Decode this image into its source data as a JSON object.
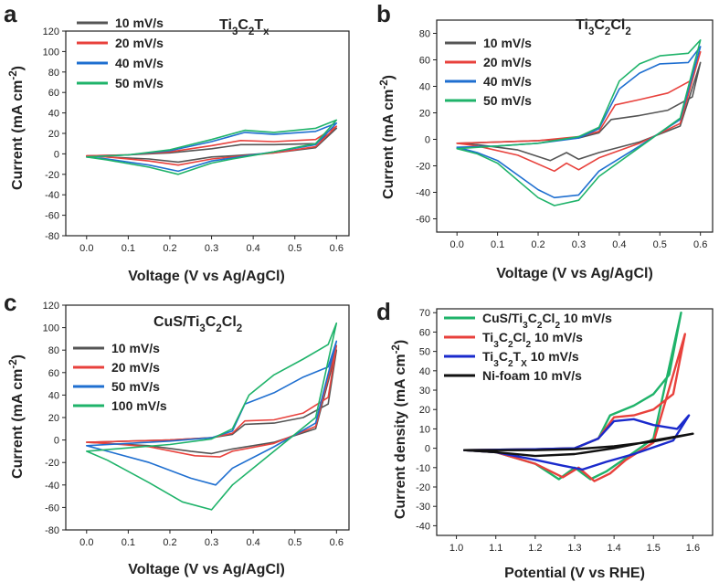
{
  "figure": {
    "panels": [
      {
        "label": "a",
        "title": "Ti3C2Tx",
        "xlabel": "Voltage (V vs Ag/AgCl)",
        "ylabel": "Current (mA cm-2)"
      },
      {
        "label": "b",
        "title": "Ti3C2Cl2",
        "xlabel": "Voltage (V vs Ag/AgCl)",
        "ylabel": "Current (mA cm-2)"
      },
      {
        "label": "c",
        "title": "CuS/Ti3C2Cl2",
        "xlabel": "Voltage (V vs Ag/AgCl)",
        "ylabel": "Current (mA cm-2)"
      },
      {
        "label": "d",
        "title": "",
        "xlabel": "Potential (V vs RHE)",
        "ylabel": "Current density (mA cm-2)"
      }
    ]
  },
  "chart_data": [
    {
      "type": "line",
      "panel": "a",
      "title": "Ti3C2Tx",
      "xlabel": "Voltage (V vs Ag/AgCl)",
      "ylabel": "Current (mA cm-2)",
      "xlim": [
        -0.05,
        0.63
      ],
      "ylim": [
        -80,
        120
      ],
      "xticks": [
        0.0,
        0.1,
        0.2,
        0.3,
        0.4,
        0.5,
        0.6
      ],
      "yticks": [
        -80,
        -60,
        -40,
        -20,
        0,
        20,
        40,
        60,
        80,
        100,
        120
      ],
      "xtick_labels": [
        "0.0",
        "0.1",
        "0.2",
        "0.3",
        "0.4",
        "0.5",
        "0.6"
      ],
      "ytick_labels": [
        "-80",
        "-60",
        "-40",
        "-20",
        "0",
        "20",
        "40",
        "60",
        "80",
        "100",
        "120"
      ],
      "legend_position": "top-left",
      "series": [
        {
          "name": "10 mV/s",
          "color": "#555555",
          "x": [
            0.0,
            0.1,
            0.2,
            0.3,
            0.37,
            0.45,
            0.55,
            0.6,
            0.55,
            0.45,
            0.35,
            0.3,
            0.22,
            0.15,
            0.05,
            0.0
          ],
          "y": [
            -2,
            -1,
            1,
            5,
            9,
            9,
            10,
            25,
            6,
            1,
            -2,
            -3,
            -8,
            -5,
            -3,
            -2
          ]
        },
        {
          "name": "20 mV/s",
          "color": "#e8413c",
          "x": [
            0.0,
            0.1,
            0.2,
            0.3,
            0.37,
            0.45,
            0.55,
            0.6,
            0.55,
            0.45,
            0.35,
            0.3,
            0.22,
            0.15,
            0.05,
            0.0
          ],
          "y": [
            -2,
            -1,
            2,
            8,
            13,
            12,
            14,
            27,
            7,
            1,
            -3,
            -5,
            -11,
            -7,
            -3,
            -2
          ]
        },
        {
          "name": "40 mV/s",
          "color": "#1f6fd0",
          "x": [
            0.0,
            0.1,
            0.2,
            0.3,
            0.38,
            0.45,
            0.55,
            0.6,
            0.55,
            0.45,
            0.35,
            0.3,
            0.22,
            0.15,
            0.05,
            0.0
          ],
          "y": [
            -3,
            -1,
            3,
            12,
            21,
            19,
            22,
            30,
            9,
            2,
            -4,
            -7,
            -17,
            -11,
            -5,
            -3
          ]
        },
        {
          "name": "50 mV/s",
          "color": "#1fb36a",
          "x": [
            0.0,
            0.1,
            0.2,
            0.3,
            0.38,
            0.45,
            0.55,
            0.6,
            0.55,
            0.45,
            0.35,
            0.3,
            0.22,
            0.15,
            0.05,
            0.0
          ],
          "y": [
            -3,
            -1,
            4,
            14,
            23,
            21,
            25,
            33,
            10,
            2,
            -5,
            -9,
            -20,
            -13,
            -6,
            -3
          ]
        }
      ]
    },
    {
      "type": "line",
      "panel": "b",
      "title": "Ti3C2Cl2",
      "xlabel": "Voltage (V vs Ag/AgCl)",
      "ylabel": "Current (mA cm-2)",
      "xlim": [
        -0.05,
        0.63
      ],
      "ylim": [
        -70,
        90
      ],
      "xticks": [
        0.0,
        0.1,
        0.2,
        0.3,
        0.4,
        0.5,
        0.6
      ],
      "yticks": [
        -60,
        -40,
        -20,
        0,
        20,
        40,
        60,
        80
      ],
      "xtick_labels": [
        "0.0",
        "0.1",
        "0.2",
        "0.3",
        "0.4",
        "0.5",
        "0.6"
      ],
      "ytick_labels": [
        "-60",
        "-40",
        "-20",
        "0",
        "20",
        "40",
        "60",
        "80"
      ],
      "legend_position": "top-left",
      "series": [
        {
          "name": "10 mV/s",
          "color": "#555555",
          "x": [
            0.0,
            0.1,
            0.2,
            0.3,
            0.35,
            0.38,
            0.45,
            0.52,
            0.58,
            0.6,
            0.55,
            0.45,
            0.35,
            0.3,
            0.27,
            0.23,
            0.15,
            0.05,
            0.0
          ],
          "y": [
            -3,
            -2,
            -1,
            1,
            5,
            15,
            18,
            22,
            32,
            58,
            10,
            -2,
            -10,
            -15,
            -10,
            -16,
            -8,
            -4,
            -3
          ]
        },
        {
          "name": "20 mV/s",
          "color": "#e8413c",
          "x": [
            0.0,
            0.1,
            0.2,
            0.3,
            0.35,
            0.39,
            0.45,
            0.52,
            0.58,
            0.6,
            0.55,
            0.45,
            0.35,
            0.3,
            0.27,
            0.24,
            0.15,
            0.05,
            0.0
          ],
          "y": [
            -3,
            -2,
            -1,
            2,
            6,
            26,
            30,
            35,
            45,
            66,
            12,
            -3,
            -14,
            -23,
            -18,
            -24,
            -12,
            -5,
            -3
          ]
        },
        {
          "name": "40 mV/s",
          "color": "#1f6fd0",
          "x": [
            0.0,
            0.1,
            0.2,
            0.3,
            0.35,
            0.4,
            0.45,
            0.5,
            0.57,
            0.6,
            0.55,
            0.45,
            0.35,
            0.3,
            0.24,
            0.2,
            0.1,
            0.05,
            0.0
          ],
          "y": [
            -6,
            -5,
            -3,
            1,
            8,
            38,
            50,
            57,
            58,
            70,
            15,
            -5,
            -24,
            -42,
            -44,
            -38,
            -16,
            -10,
            -6
          ]
        },
        {
          "name": "50 mV/s",
          "color": "#1fb36a",
          "x": [
            0.0,
            0.1,
            0.2,
            0.3,
            0.35,
            0.4,
            0.45,
            0.5,
            0.57,
            0.6,
            0.55,
            0.45,
            0.35,
            0.3,
            0.24,
            0.2,
            0.1,
            0.05,
            0.0
          ],
          "y": [
            -7,
            -5,
            -3,
            2,
            9,
            44,
            57,
            63,
            65,
            75,
            16,
            -6,
            -28,
            -46,
            -50,
            -44,
            -18,
            -11,
            -7
          ]
        }
      ]
    },
    {
      "type": "line",
      "panel": "c",
      "title": "CuS/Ti3C2Cl2",
      "xlabel": "Voltage (V vs Ag/AgCl)",
      "ylabel": "Current (mA cm-2)",
      "xlim": [
        -0.05,
        0.63
      ],
      "ylim": [
        -80,
        120
      ],
      "xticks": [
        0.0,
        0.1,
        0.2,
        0.3,
        0.4,
        0.5,
        0.6
      ],
      "yticks": [
        -80,
        -60,
        -40,
        -20,
        0,
        20,
        40,
        60,
        80,
        100,
        120
      ],
      "xtick_labels": [
        "0.0",
        "0.1",
        "0.2",
        "0.3",
        "0.4",
        "0.5",
        "0.6"
      ],
      "ytick_labels": [
        "-80",
        "-60",
        "-40",
        "-20",
        "0",
        "20",
        "40",
        "60",
        "80",
        "100",
        "120"
      ],
      "legend_position": "top-left",
      "series": [
        {
          "name": "10 mV/s",
          "color": "#555555",
          "x": [
            0.0,
            0.1,
            0.2,
            0.3,
            0.35,
            0.38,
            0.45,
            0.52,
            0.58,
            0.6,
            0.55,
            0.45,
            0.35,
            0.3,
            0.25,
            0.15,
            0.05,
            0.0
          ],
          "y": [
            -2,
            -1,
            0,
            2,
            5,
            14,
            15,
            20,
            32,
            80,
            10,
            -2,
            -8,
            -12,
            -10,
            -5,
            -3,
            -2
          ]
        },
        {
          "name": "20 mV/s",
          "color": "#e8413c",
          "x": [
            0.0,
            0.1,
            0.2,
            0.3,
            0.35,
            0.38,
            0.45,
            0.52,
            0.58,
            0.6,
            0.55,
            0.45,
            0.35,
            0.32,
            0.26,
            0.15,
            0.05,
            0.0
          ],
          "y": [
            -2,
            -1,
            0,
            2,
            6,
            17,
            18,
            24,
            38,
            84,
            12,
            -3,
            -10,
            -15,
            -14,
            -6,
            -3,
            -2
          ]
        },
        {
          "name": "50 mV/s",
          "color": "#1f6fd0",
          "x": [
            0.0,
            0.1,
            0.2,
            0.3,
            0.35,
            0.38,
            0.45,
            0.52,
            0.58,
            0.6,
            0.55,
            0.45,
            0.35,
            0.31,
            0.25,
            0.15,
            0.05,
            0.0
          ],
          "y": [
            -5,
            -3,
            -1,
            2,
            8,
            32,
            42,
            56,
            65,
            88,
            15,
            -6,
            -25,
            -40,
            -34,
            -20,
            -10,
            -5
          ]
        },
        {
          "name": "100 mV/s",
          "color": "#1fb36a",
          "x": [
            0.0,
            0.1,
            0.2,
            0.3,
            0.35,
            0.39,
            0.45,
            0.52,
            0.58,
            0.6,
            0.55,
            0.45,
            0.35,
            0.3,
            0.23,
            0.15,
            0.05,
            0.0
          ],
          "y": [
            -10,
            -7,
            -4,
            1,
            10,
            40,
            58,
            72,
            85,
            104,
            20,
            -10,
            -40,
            -62,
            -55,
            -38,
            -18,
            -10
          ]
        }
      ]
    },
    {
      "type": "line",
      "panel": "d",
      "title": "",
      "xlabel": "Potential (V vs RHE)",
      "ylabel": "Current density (mA cm-2)",
      "xlim": [
        0.95,
        1.65
      ],
      "ylim": [
        -45,
        72
      ],
      "xticks": [
        1.0,
        1.1,
        1.2,
        1.3,
        1.4,
        1.5,
        1.6
      ],
      "yticks": [
        -40,
        -30,
        -20,
        -10,
        0,
        10,
        20,
        30,
        40,
        50,
        60,
        70
      ],
      "xtick_labels": [
        "1.0",
        "1.1",
        "1.2",
        "1.3",
        "1.4",
        "1.5",
        "1.6"
      ],
      "ytick_labels": [
        "-40",
        "-30",
        "-20",
        "-10",
        "0",
        "10",
        "20",
        "30",
        "40",
        "50",
        "60",
        "70"
      ],
      "legend_position": "top-left",
      "series": [
        {
          "name": "CuS/Ti3C2Cl2 10 mV/s",
          "color": "#1fb36a",
          "x": [
            1.02,
            1.2,
            1.3,
            1.36,
            1.39,
            1.45,
            1.5,
            1.54,
            1.57,
            1.5,
            1.43,
            1.38,
            1.34,
            1.3,
            1.26,
            1.2,
            1.1,
            1.02
          ],
          "y": [
            -1,
            -0.5,
            0,
            5,
            17,
            22,
            28,
            38,
            70,
            5,
            -5,
            -12,
            -16,
            -10,
            -16,
            -8,
            -2,
            -1
          ]
        },
        {
          "name": "Ti3C2Cl2 10 mV/s",
          "color": "#e8413c",
          "x": [
            1.02,
            1.2,
            1.3,
            1.36,
            1.4,
            1.45,
            1.5,
            1.55,
            1.58,
            1.5,
            1.43,
            1.39,
            1.35,
            1.31,
            1.27,
            1.2,
            1.1,
            1.02
          ],
          "y": [
            -1,
            -0.5,
            0,
            5,
            16,
            17,
            20,
            28,
            59,
            3,
            -6,
            -13,
            -17,
            -10,
            -15,
            -8,
            -2,
            -1
          ]
        },
        {
          "name": "Ti3C2TX 10 mV/s",
          "color": "#1a2acc",
          "x": [
            1.02,
            1.2,
            1.3,
            1.36,
            1.4,
            1.45,
            1.5,
            1.56,
            1.59,
            1.55,
            1.45,
            1.38,
            1.32,
            1.27,
            1.2,
            1.1,
            1.02
          ],
          "y": [
            -1,
            -0.5,
            0,
            5,
            14,
            15,
            12,
            10,
            17,
            4,
            -3,
            -7,
            -11,
            -9,
            -6,
            -2,
            -1
          ]
        },
        {
          "name": "Ni-foam 10 mV/s",
          "color": "#111111",
          "x": [
            1.02,
            1.2,
            1.3,
            1.4,
            1.5,
            1.6,
            1.5,
            1.4,
            1.3,
            1.2,
            1.1,
            1.02
          ],
          "y": [
            -1,
            -1,
            -0.5,
            1,
            3.5,
            7.5,
            4,
            0,
            -3,
            -4,
            -2,
            -1
          ]
        }
      ]
    }
  ]
}
